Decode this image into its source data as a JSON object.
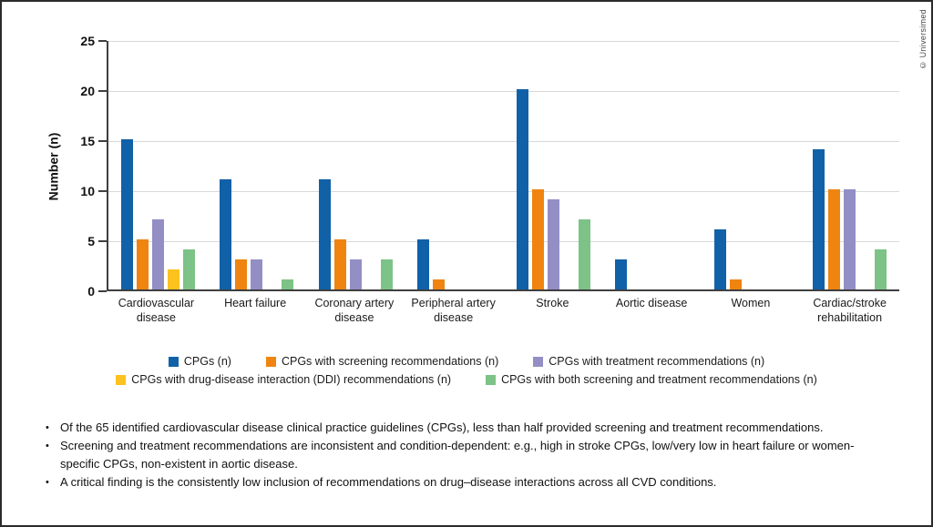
{
  "copyright": "© Universimed",
  "chart_data": {
    "type": "bar",
    "title": "",
    "xlabel": "",
    "ylabel": "Number (n)",
    "ylim": [
      0,
      25
    ],
    "yticks": [
      0,
      5,
      10,
      15,
      20,
      25
    ],
    "grid": true,
    "legend_position": "bottom",
    "categories": [
      "Cardiovascular disease",
      "Heart failure",
      "Coronary artery disease",
      "Peripheral artery disease",
      "Stroke",
      "Aortic disease",
      "Women",
      "Cardiac/stroke rehabilitation"
    ],
    "series": [
      {
        "name": "CPGs (n)",
        "color": "#1161a8",
        "values": [
          15,
          11,
          11,
          5,
          20,
          3,
          6,
          14
        ]
      },
      {
        "name": "CPGs with screening recommendations (n)",
        "color": "#ef8410",
        "values": [
          5,
          3,
          5,
          1,
          10,
          0,
          1,
          10
        ]
      },
      {
        "name": "CPGs with treatment recommendations (n)",
        "color": "#938fc4",
        "values": [
          7,
          3,
          3,
          0,
          9,
          0,
          0,
          10
        ]
      },
      {
        "name": "CPGs with drug-disease interaction (DDI) recommendations (n)",
        "color": "#fcc21d",
        "values": [
          2,
          0,
          0,
          0,
          0,
          0,
          0,
          0
        ]
      },
      {
        "name": "CPGs with both screening and treatment recommendations (n)",
        "color": "#7dc287",
        "values": [
          4,
          1,
          3,
          0,
          7,
          0,
          0,
          4
        ]
      }
    ],
    "legend_rows": [
      [
        0,
        1,
        2
      ],
      [
        3,
        4
      ]
    ]
  },
  "notes": [
    "Of the 65 identified cardiovascular disease clinical practice guidelines (CPGs), less than half provided screening and treatment recommendations.",
    "Screening and treatment recommendations are inconsistent and condition-dependent: e.g., high in stroke CPGs, low/very low in heart failure or women-specific CPGs, non-existent in aortic disease.",
    "A critical finding is the consistently low inclusion of recommendations on drug–disease interactions across all CVD conditions."
  ]
}
